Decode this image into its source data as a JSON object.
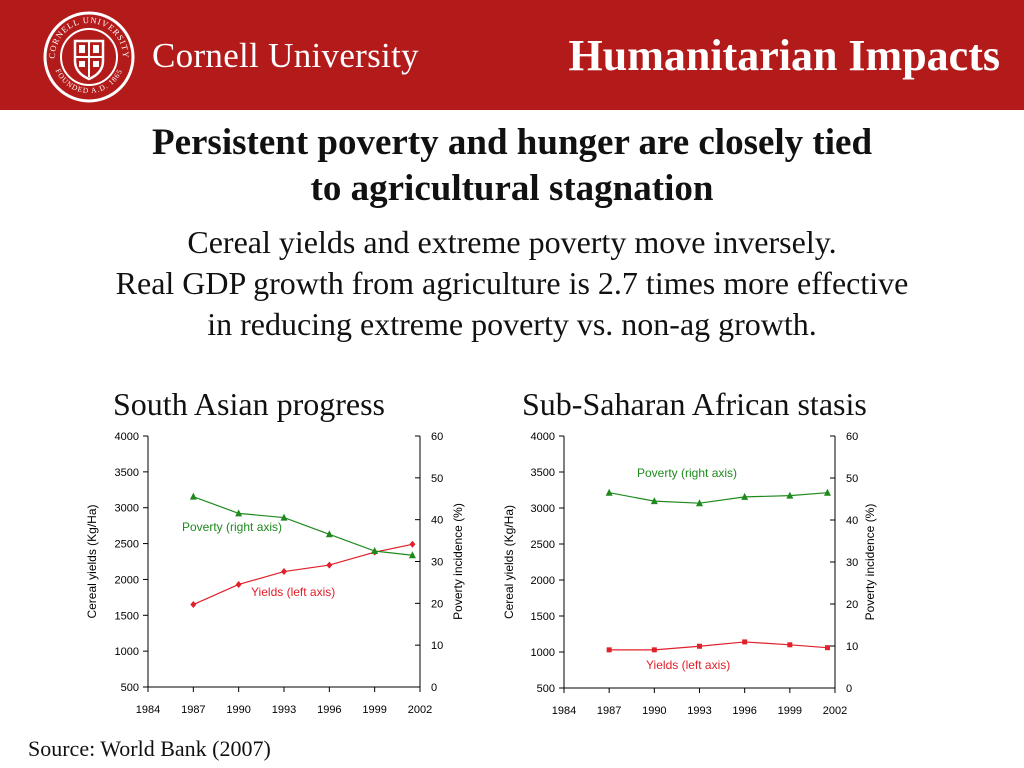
{
  "header": {
    "university_name": "Cornell University",
    "seal_text": "CORNELL UNIVERSITY · FOUNDED A.D. 1865",
    "title": "Humanitarian Impacts"
  },
  "headline": {
    "line1": "Persistent poverty and hunger are closely tied",
    "line2": "to agricultural stagnation"
  },
  "subtext": {
    "line1": "Cereal yields and extreme poverty move inversely.",
    "line2": "Real GDP growth from agriculture is 2.7 times more effective",
    "line3": "in reducing extreme poverty vs. non-ag growth."
  },
  "source": "Source: World Bank (2007)",
  "colors": {
    "header_bg": "#b31b1b",
    "yields": "#e0202a",
    "poverty": "#1e8a1e"
  },
  "chart_data": [
    {
      "type": "line",
      "title": "South Asian progress",
      "x": [
        1987,
        1990,
        1993,
        1996,
        1999,
        2001.5
      ],
      "xlim": [
        1984,
        2002
      ],
      "xticks": [
        "1984",
        "1987",
        "1990",
        "1993",
        "1996",
        "1999",
        "2002"
      ],
      "ylabel_left": "Cereal yields (Kg/Ha)",
      "ylabel_right": "Poverty incidence (%)",
      "ylim_left": [
        500,
        4000
      ],
      "yticks_left": [
        "500",
        "1000",
        "1500",
        "2000",
        "2500",
        "3000",
        "3500",
        "4000"
      ],
      "ylim_right": [
        0,
        60
      ],
      "yticks_right": [
        "0",
        "10",
        "20",
        "30",
        "40",
        "50",
        "60"
      ],
      "series": [
        {
          "name": "Yields (left axis)",
          "axis": "left",
          "marker": "diamond",
          "values": [
            1650,
            1930,
            2110,
            2200,
            2380,
            2490
          ]
        },
        {
          "name": "Poverty (right axis)",
          "axis": "right",
          "marker": "triangle",
          "values": [
            45.5,
            41.5,
            40.5,
            36.5,
            32.5,
            31.5
          ]
        }
      ]
    },
    {
      "type": "line",
      "title": "Sub-Saharan African stasis",
      "x": [
        1987,
        1990,
        1993,
        1996,
        1999,
        2001.5
      ],
      "xlim": [
        1984,
        2002
      ],
      "xticks": [
        "1984",
        "1987",
        "1990",
        "1993",
        "1996",
        "1999",
        "2002"
      ],
      "ylabel_left": "Cereal yields (Kg/Ha)",
      "ylabel_right": "Poverty incidence (%)",
      "ylim_left": [
        500,
        4000
      ],
      "yticks_left": [
        "500",
        "1000",
        "1500",
        "2000",
        "2500",
        "3000",
        "3500",
        "4000"
      ],
      "ylim_right": [
        0,
        60
      ],
      "yticks_right": [
        "0",
        "10",
        "20",
        "30",
        "40",
        "50",
        "60"
      ],
      "series": [
        {
          "name": "Yields (left axis)",
          "axis": "left",
          "marker": "square",
          "values": [
            1030,
            1030,
            1080,
            1140,
            1100,
            1060
          ]
        },
        {
          "name": "Poverty (right axis)",
          "axis": "right",
          "marker": "triangle",
          "values": [
            46.5,
            44.5,
            44.0,
            45.5,
            45.8,
            46.5
          ]
        }
      ]
    }
  ]
}
